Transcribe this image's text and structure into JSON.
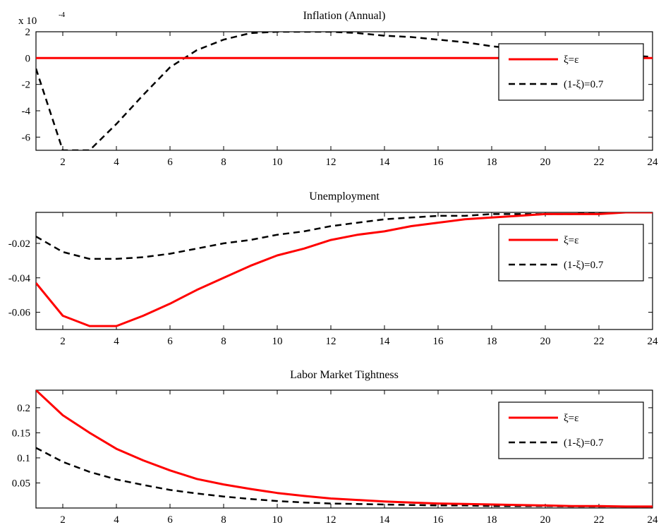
{
  "chart_data": [
    {
      "type": "line",
      "title": "Inflation (Annual)",
      "y_multiplier": "x 10",
      "y_multiplier_exp": "-4",
      "xlabel": "",
      "ylabel": "",
      "xlim": [
        1,
        24
      ],
      "ylim": [
        -7,
        2
      ],
      "xticks": [
        2,
        4,
        6,
        8,
        10,
        12,
        14,
        16,
        18,
        20,
        22,
        24
      ],
      "yticks": [
        2,
        0,
        -2,
        -4,
        -6
      ],
      "yticklabels": [
        "2",
        "0",
        "-2",
        "-4",
        "-6"
      ],
      "legend_position": "upper-right",
      "x": [
        1,
        2,
        3,
        4,
        5,
        6,
        7,
        8,
        9,
        10,
        11,
        12,
        13,
        14,
        15,
        16,
        17,
        18,
        19,
        20,
        21,
        22,
        23,
        24
      ],
      "series": [
        {
          "name": "ξ=ε",
          "color": "#ff0000",
          "dash": "solid",
          "values": [
            0,
            0,
            0,
            0,
            0,
            0,
            0,
            0,
            0,
            0,
            0,
            0,
            0,
            0,
            0,
            0,
            0,
            0,
            0,
            0,
            0,
            0,
            0,
            0
          ]
        },
        {
          "name": "(1-ξ)=0.7",
          "color": "#000000",
          "dash": "dashed",
          "values": [
            -0.8,
            -7.0,
            -7.0,
            -5.0,
            -2.8,
            -0.7,
            0.6,
            1.4,
            1.9,
            2.0,
            2.0,
            2.0,
            1.9,
            1.7,
            1.6,
            1.4,
            1.2,
            0.9,
            0.7,
            0.5,
            0.4,
            0.3,
            0.2,
            0.1
          ]
        }
      ]
    },
    {
      "type": "line",
      "title": "Unemployment",
      "xlabel": "",
      "ylabel": "",
      "xlim": [
        1,
        24
      ],
      "ylim": [
        -0.07,
        -0.002
      ],
      "xticks": [
        2,
        4,
        6,
        8,
        10,
        12,
        14,
        16,
        18,
        20,
        22,
        24
      ],
      "yticks": [
        -0.02,
        -0.04,
        -0.06
      ],
      "yticklabels": [
        "-0.02",
        "-0.04",
        "-0.06"
      ],
      "legend_position": "upper-right",
      "x": [
        1,
        2,
        3,
        4,
        5,
        6,
        7,
        8,
        9,
        10,
        11,
        12,
        13,
        14,
        15,
        16,
        17,
        18,
        19,
        20,
        21,
        22,
        23,
        24
      ],
      "series": [
        {
          "name": "ξ=ε",
          "color": "#ff0000",
          "dash": "solid",
          "values": [
            -0.043,
            -0.062,
            -0.068,
            -0.068,
            -0.062,
            -0.055,
            -0.047,
            -0.04,
            -0.033,
            -0.027,
            -0.023,
            -0.018,
            -0.015,
            -0.013,
            -0.01,
            -0.008,
            -0.006,
            -0.005,
            -0.004,
            -0.003,
            -0.003,
            -0.003,
            -0.002,
            -0.002
          ]
        },
        {
          "name": "(1-ξ)=0.7",
          "color": "#000000",
          "dash": "dashed",
          "values": [
            -0.016,
            -0.025,
            -0.029,
            -0.029,
            -0.028,
            -0.026,
            -0.023,
            -0.02,
            -0.018,
            -0.015,
            -0.013,
            -0.01,
            -0.008,
            -0.006,
            -0.005,
            -0.004,
            -0.004,
            -0.003,
            -0.003,
            -0.003,
            -0.003,
            -0.002,
            -0.002,
            -0.002
          ]
        }
      ]
    },
    {
      "type": "line",
      "title": "Labor Market Tightness",
      "xlabel": "",
      "ylabel": "",
      "xlim": [
        1,
        24
      ],
      "ylim": [
        0,
        0.235
      ],
      "xticks": [
        2,
        4,
        6,
        8,
        10,
        12,
        14,
        16,
        18,
        20,
        22,
        24
      ],
      "yticks": [
        0.2,
        0.15,
        0.1,
        0.05
      ],
      "yticklabels": [
        "0.2",
        "0.15",
        "0.1",
        "0.05"
      ],
      "legend_position": "upper-right",
      "x": [
        1,
        2,
        3,
        4,
        5,
        6,
        7,
        8,
        9,
        10,
        11,
        12,
        13,
        14,
        15,
        16,
        17,
        18,
        19,
        20,
        21,
        22,
        23,
        24
      ],
      "series": [
        {
          "name": "ξ=ε",
          "color": "#ff0000",
          "dash": "solid",
          "values": [
            0.235,
            0.185,
            0.15,
            0.118,
            0.095,
            0.075,
            0.058,
            0.047,
            0.038,
            0.03,
            0.024,
            0.019,
            0.016,
            0.013,
            0.011,
            0.009,
            0.008,
            0.007,
            0.006,
            0.005,
            0.004,
            0.004,
            0.003,
            0.003
          ]
        },
        {
          "name": "(1-ξ)=0.7",
          "color": "#000000",
          "dash": "dashed",
          "values": [
            0.12,
            0.092,
            0.072,
            0.057,
            0.046,
            0.036,
            0.029,
            0.023,
            0.018,
            0.014,
            0.011,
            0.009,
            0.008,
            0.007,
            0.006,
            0.005,
            0.005,
            0.004,
            0.004,
            0.004,
            0.003,
            0.003,
            0.003,
            0.003
          ]
        }
      ]
    }
  ]
}
